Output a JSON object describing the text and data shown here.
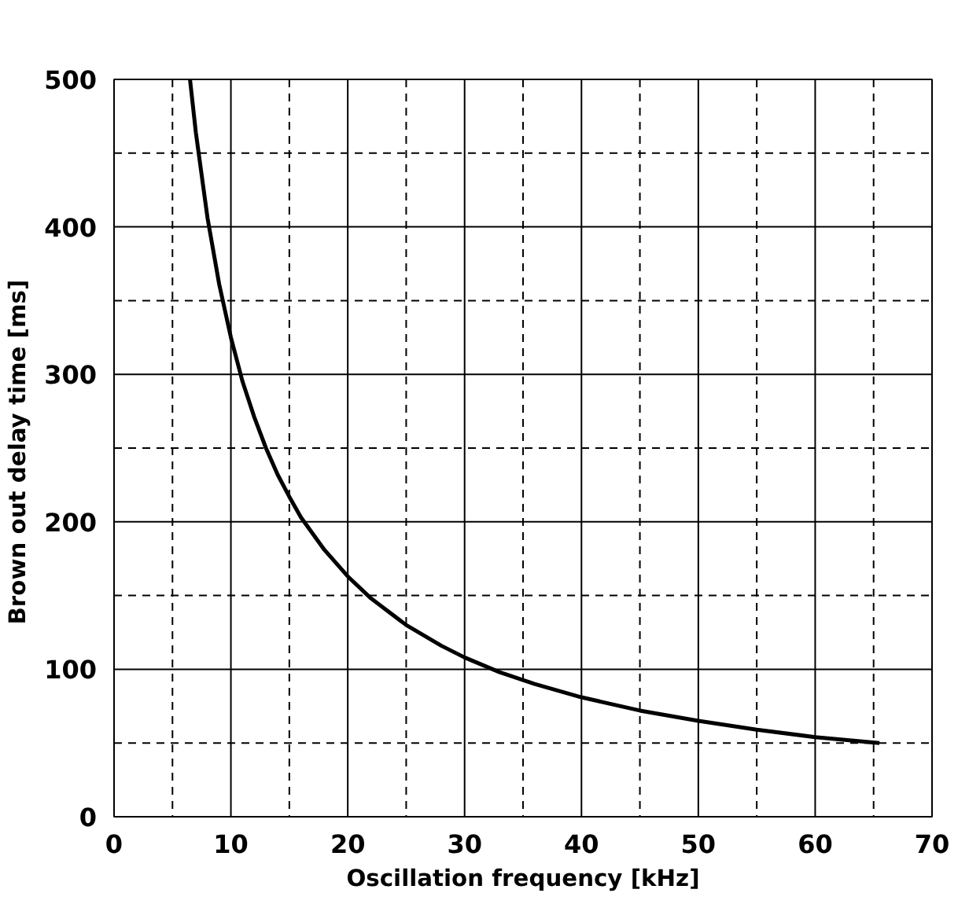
{
  "chart_data": {
    "type": "line",
    "xlabel": "Oscillation frequency [kHz]",
    "ylabel": "Brown out  delay time [ms]",
    "x": [
      6.5,
      7,
      8,
      9,
      10,
      11,
      12,
      13,
      14,
      15,
      16,
      18,
      20,
      22,
      25,
      28,
      30,
      33,
      36,
      40,
      45,
      50,
      55,
      60,
      65.5
    ],
    "series": [
      {
        "color": "#000000",
        "values": [
          500,
          464,
          406,
          361,
          325,
          295,
          271,
          250,
          232,
          217,
          203,
          181,
          163,
          148,
          130,
          116,
          108,
          98,
          90,
          81,
          72,
          65,
          59,
          54,
          50
        ]
      }
    ],
    "xlim": [
      0,
      70
    ],
    "ylim": [
      0,
      500
    ],
    "xticks": [
      0,
      {
        "value": 5,
        "label": null
      },
      10,
      {
        "value": 15,
        "label": null
      },
      20,
      {
        "value": 25,
        "label": null
      },
      30,
      {
        "value": 35,
        "label": null
      },
      40,
      {
        "value": 45,
        "label": null
      },
      50,
      {
        "value": 55,
        "label": null
      },
      60,
      {
        "value": 65,
        "label": null
      },
      70
    ],
    "yticks": [
      0,
      {
        "value": 50,
        "label": null
      },
      100,
      {
        "value": 150,
        "label": null
      },
      200,
      {
        "value": 250,
        "label": null
      },
      300,
      {
        "value": 350,
        "label": null
      },
      400,
      {
        "value": 450,
        "label": null
      },
      500
    ],
    "grid": true,
    "marker": "none",
    "line_style": "solid"
  }
}
